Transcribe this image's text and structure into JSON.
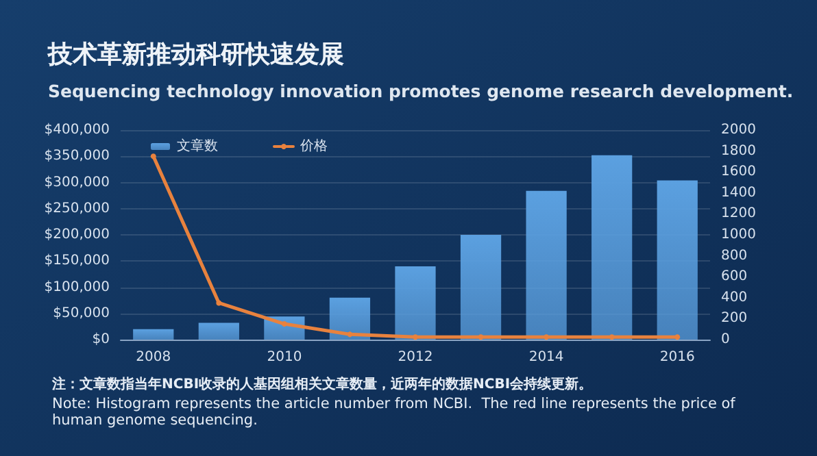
{
  "chart_data": {
    "type": "bar",
    "title": "技术革新推动科研快速发展",
    "subtitle": "Sequencing technology innovation promotes genome research development.",
    "categories": [
      "2008",
      null,
      "2010",
      null,
      "2012",
      null,
      "2014",
      null,
      "2016"
    ],
    "series": [
      {
        "name": "文章数",
        "axis": "y2",
        "color": "#5ba0e0",
        "values": [
          100,
          160,
          220,
          400,
          700,
          1000,
          1420,
          1760,
          1520
        ]
      },
      {
        "name": "价格",
        "type": "line",
        "color": "#e8823e",
        "values": [
          350000,
          70000,
          30000,
          10000,
          5000,
          5000,
          5000,
          5000,
          5000
        ]
      }
    ],
    "ylim": [
      0,
      400000
    ],
    "yticks": [
      {
        "value": 0,
        "label": "$0"
      },
      {
        "value": 50000,
        "label": "$50,000"
      },
      {
        "value": 100000,
        "label": "$100,000"
      },
      {
        "value": 150000,
        "label": "$150,000"
      },
      {
        "value": 200000,
        "label": "$200,000"
      },
      {
        "value": 250000,
        "label": "$250,000"
      },
      {
        "value": 300000,
        "label": "$300,000"
      },
      {
        "value": 350000,
        "label": "$350,000"
      },
      {
        "value": 400000,
        "label": "$400,000"
      }
    ],
    "y2lim": [
      0,
      2000
    ],
    "y2ticks": [
      0,
      200,
      400,
      600,
      800,
      1000,
      1200,
      1400,
      1600,
      1800,
      2000
    ],
    "grid": "y",
    "legend": "top",
    "marker": "circle",
    "line_style": "solid",
    "annotations": [
      "注：文章数指当年NCBI收录的人基因组相关文章数量，近两年的数据NCBI会持续更新。",
      "Note: Histogram represents the article number from NCBI.  The red line represents the price of human genome sequencing."
    ]
  }
}
